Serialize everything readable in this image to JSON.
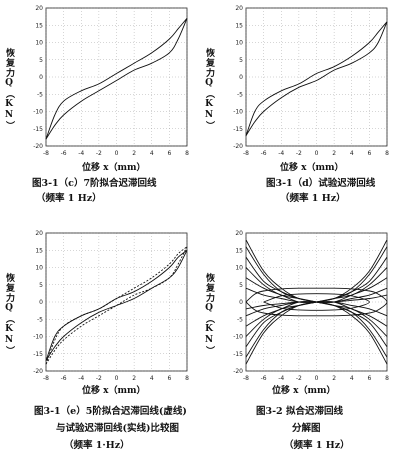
{
  "y_axis_label": "恢复力Q（KN）",
  "x_axis_label": "位移 x（mm）",
  "x_ticks": [
    "-8",
    "-6",
    "-4",
    "-2",
    "0",
    "2",
    "4",
    "6",
    "8"
  ],
  "y_ticks": [
    "20",
    "15",
    "10",
    "5",
    "0",
    "-5",
    "-10",
    "-15",
    "-20"
  ],
  "captions": {
    "c": [
      "图3-1（c）7阶拟合迟滞回线",
      "（频率 1 Hz）"
    ],
    "d": [
      "图3-1（d）试验迟滞回线",
      "（频率 1 Hz）"
    ],
    "e": [
      "图3-1（e）5阶拟合迟滞回线(虚线)",
      "与试验迟滞回线(实线)比较图",
      "（频率 1·Hz）"
    ],
    "f": [
      "图3-2 拟合迟滞回线",
      "分解图",
      "（频率 1 Hz）"
    ]
  },
  "chart_data": [
    {
      "type": "line",
      "id": "c",
      "xlim": [
        -8,
        8
      ],
      "ylim": [
        -20,
        20
      ],
      "series": [
        {
          "x": [
            -8,
            -7,
            -6,
            -4,
            -2,
            0,
            2,
            4,
            6,
            7,
            8
          ],
          "y": [
            -18,
            -14,
            -11,
            -7,
            -4,
            -1,
            2,
            4,
            7,
            11,
            17
          ]
        },
        {
          "x": [
            -8,
            -7,
            -6,
            -4,
            -2,
            0,
            2,
            4,
            6,
            7,
            8
          ],
          "y": [
            -18,
            -11,
            -7,
            -4,
            -2,
            1,
            4,
            7,
            11,
            14,
            17
          ]
        }
      ]
    },
    {
      "type": "line",
      "id": "d",
      "xlim": [
        -8,
        8
      ],
      "ylim": [
        -20,
        20
      ],
      "series": [
        {
          "x": [
            -8,
            -7,
            -6,
            -4,
            -2,
            0,
            2,
            4,
            6,
            7,
            8
          ],
          "y": [
            -17,
            -13,
            -10,
            -6,
            -3,
            -1,
            2,
            4,
            7,
            10,
            16
          ]
        },
        {
          "x": [
            -8,
            -7,
            -6,
            -4,
            -2,
            0,
            2,
            4,
            6,
            7,
            8
          ],
          "y": [
            -17,
            -10,
            -7,
            -4,
            -2,
            1,
            3,
            6,
            10,
            13,
            16
          ]
        }
      ]
    },
    {
      "type": "line",
      "id": "e",
      "xlim": [
        -8,
        8
      ],
      "ylim": [
        -20,
        20
      ],
      "series": [
        {
          "style": "solid",
          "x": [
            -8,
            -7,
            -6,
            -4,
            -2,
            0,
            2,
            4,
            6,
            7,
            8
          ],
          "y": [
            -17,
            -13,
            -10,
            -6,
            -3,
            -1,
            1,
            4,
            7,
            10,
            15
          ]
        },
        {
          "style": "solid",
          "x": [
            -8,
            -7,
            -6,
            -4,
            -2,
            0,
            2,
            4,
            6,
            7,
            8
          ],
          "y": [
            -17,
            -10,
            -7,
            -4,
            -2,
            1,
            3,
            6,
            10,
            13,
            15
          ]
        },
        {
          "style": "dashed",
          "x": [
            -8,
            -7,
            -6,
            -4,
            -2,
            0,
            2,
            4,
            6,
            7,
            8
          ],
          "y": [
            -18,
            -14,
            -11,
            -7,
            -4,
            -1,
            2,
            4,
            7,
            11,
            16
          ]
        },
        {
          "style": "dashed",
          "x": [
            -8,
            -7,
            -6,
            -4,
            -2,
            0,
            2,
            4,
            6,
            7,
            8
          ],
          "y": [
            -18,
            -11,
            -7,
            -4,
            -2,
            1,
            4,
            7,
            11,
            14,
            16
          ]
        }
      ]
    },
    {
      "type": "line",
      "id": "f",
      "xlim": [
        -8,
        8
      ],
      "ylim": [
        -20,
        20
      ],
      "series": [
        {
          "x": [
            -8,
            -6,
            -4,
            -2,
            0,
            2,
            4,
            6,
            8
          ],
          "y": [
            -18,
            -9,
            -4,
            -1,
            0,
            1,
            4,
            9,
            18
          ]
        },
        {
          "x": [
            -8,
            -6,
            -4,
            -2,
            0,
            2,
            4,
            6,
            8
          ],
          "y": [
            -16,
            -8,
            -3,
            -1,
            0,
            1,
            3,
            8,
            16
          ]
        },
        {
          "x": [
            -8,
            -6,
            -4,
            -2,
            0,
            2,
            4,
            6,
            8
          ],
          "y": [
            -13,
            -6,
            -3,
            -1,
            0,
            1,
            3,
            6,
            13
          ]
        },
        {
          "x": [
            -8,
            -6,
            -4,
            -2,
            0,
            2,
            4,
            6,
            8
          ],
          "y": [
            -10,
            -5,
            -2,
            -1,
            0,
            1,
            2,
            5,
            10
          ]
        },
        {
          "x": [
            -8,
            -6,
            -4,
            -2,
            0,
            2,
            4,
            6,
            8
          ],
          "y": [
            -7,
            -4,
            -2,
            0,
            0,
            0,
            2,
            4,
            7
          ]
        },
        {
          "x": [
            -8,
            -6,
            -4,
            -2,
            0,
            2,
            4,
            6,
            8
          ],
          "y": [
            -4,
            -2,
            -1,
            0,
            0,
            0,
            1,
            2,
            4
          ]
        },
        {
          "x": [
            -8,
            -6,
            -4,
            -2,
            0,
            2,
            4,
            6,
            8
          ],
          "y": [
            -2,
            -1,
            -0.5,
            0,
            0,
            0,
            0.5,
            1,
            2
          ]
        },
        {
          "x": [
            -8,
            -6,
            -4,
            -2,
            0,
            2,
            4,
            6,
            8
          ],
          "y": [
            18,
            9,
            4,
            1,
            0,
            -1,
            -4,
            -9,
            -18
          ]
        },
        {
          "x": [
            -8,
            -6,
            -4,
            -2,
            0,
            2,
            4,
            6,
            8
          ],
          "y": [
            16,
            8,
            3,
            1,
            0,
            -1,
            -3,
            -8,
            -16
          ]
        },
        {
          "x": [
            -8,
            -6,
            -4,
            -2,
            0,
            2,
            4,
            6,
            8
          ],
          "y": [
            13,
            6,
            3,
            1,
            0,
            -1,
            -3,
            -6,
            -13
          ]
        },
        {
          "x": [
            -8,
            -6,
            -4,
            -2,
            0,
            2,
            4,
            6,
            8
          ],
          "y": [
            10,
            5,
            2,
            1,
            0,
            -1,
            -2,
            -5,
            -10
          ]
        },
        {
          "x": [
            -8,
            -6,
            -4,
            -2,
            0,
            2,
            4,
            6,
            8
          ],
          "y": [
            7,
            4,
            2,
            0,
            0,
            0,
            -2,
            -4,
            -7
          ]
        },
        {
          "x": [
            -8,
            -6,
            -4,
            -2,
            0,
            2,
            4,
            6,
            8
          ],
          "y": [
            4,
            2,
            1,
            0,
            0,
            0,
            -1,
            -2,
            -4
          ]
        },
        {
          "x": [
            -8,
            -7,
            -6,
            -4,
            -2,
            0,
            2,
            4,
            6,
            7,
            8,
            7,
            6,
            4,
            2,
            0,
            -2,
            -4,
            -6,
            -7,
            -8
          ],
          "y": [
            0,
            2.3,
            3.2,
            3.8,
            4,
            4,
            4,
            3.8,
            3.2,
            2.3,
            0,
            -2.3,
            -3.2,
            -3.8,
            -4,
            -4,
            -4,
            -3.8,
            -3.2,
            -2.3,
            0
          ]
        },
        {
          "x": [
            -6,
            -4,
            -2,
            0,
            2,
            4,
            6,
            4,
            2,
            0,
            -2,
            -4,
            -6
          ],
          "y": [
            0,
            1.8,
            2.3,
            2.4,
            2.3,
            1.8,
            0,
            -1.8,
            -2.3,
            -2.4,
            -2.3,
            -1.8,
            0
          ]
        }
      ]
    }
  ]
}
